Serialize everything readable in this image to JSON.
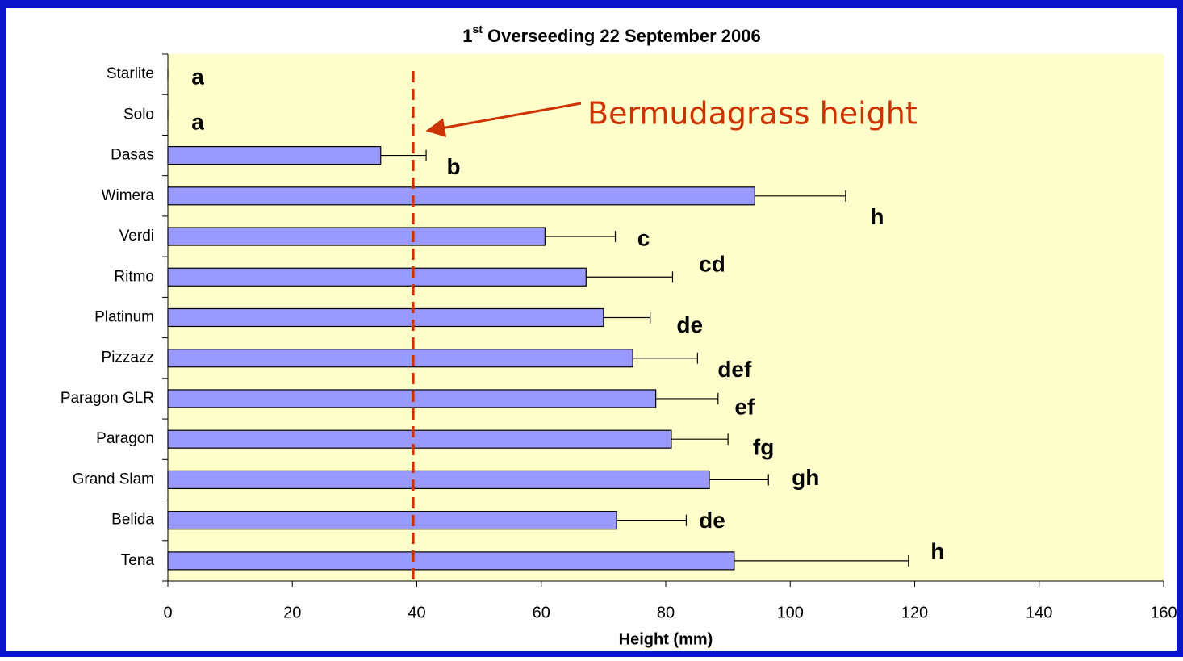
{
  "chart_data": {
    "type": "bar",
    "orientation": "horizontal",
    "title": {
      "number": "1",
      "superscript": "st",
      "text": "Overseeding 22 September 2006"
    },
    "xlabel": "Height (mm)",
    "categories": [
      "Starlite",
      "Solo",
      "Dasas",
      "Wimera",
      "Verdi",
      "Ritmo",
      "Platinum",
      "Pizzazz",
      "Paragon GLR",
      "Paragon",
      "Grand Slam",
      "Belida",
      "Tena"
    ],
    "values": [
      0,
      0,
      34.2,
      94.3,
      60.6,
      67.2,
      70.0,
      74.7,
      78.4,
      80.9,
      87.0,
      72.1,
      91.0
    ],
    "errors": [
      0,
      0,
      7.3,
      14.6,
      11.3,
      13.9,
      7.5,
      10.4,
      10.0,
      9.1,
      9.5,
      11.2,
      28.0
    ],
    "letters": [
      "a",
      "a",
      "b",
      "h",
      "c",
      "cd",
      "de",
      "def",
      "ef",
      "fg",
      "gh",
      "de",
      "h"
    ],
    "color": "#9999ff",
    "xlim": [
      0,
      160
    ],
    "xticks": [
      0,
      20,
      40,
      60,
      80,
      100,
      120,
      140,
      160
    ],
    "reference_line": {
      "value": 39.4,
      "label": "Bermudagrass height",
      "color": "#cc3300"
    }
  }
}
